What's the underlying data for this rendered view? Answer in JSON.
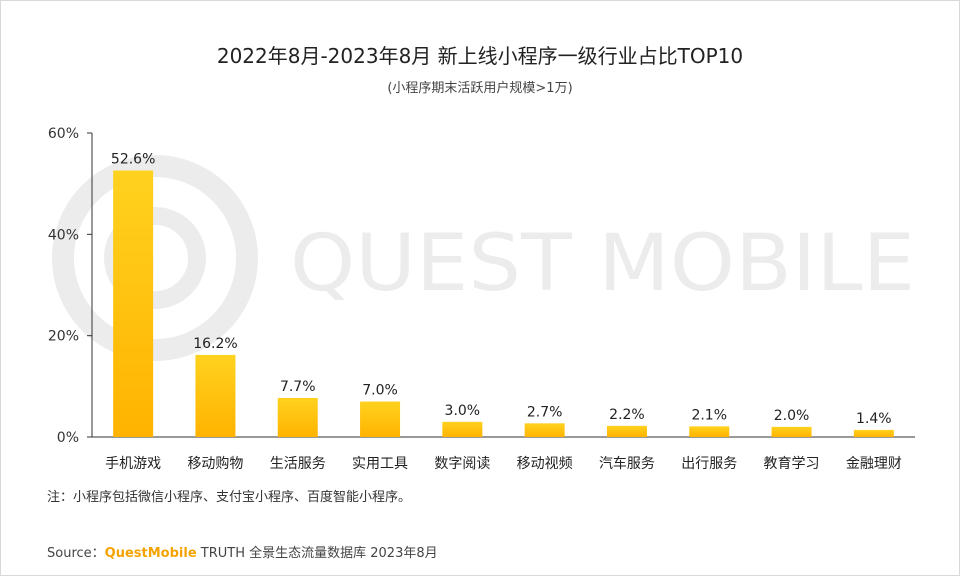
{
  "title": "2022年8月-2023年8月 新上线小程序一级行业占比TOP10",
  "subtitle": "(小程序期末活跃用户规模>1万)",
  "watermark": "QUEST MOBILE",
  "note": "注：小程序包括微信小程序、支付宝小程序、百度智能小程序。",
  "source": {
    "label": "Source：",
    "brand": "QuestMobile",
    "text": "TRUTH 全景生态流量数据库 2023年8月"
  },
  "colors": {
    "bar_top": "#ffd21f",
    "bar_bottom": "#ffb300",
    "brand": "#f5a300",
    "axis": "#333333"
  },
  "chart_data": {
    "type": "bar",
    "categories": [
      "手机游戏",
      "移动购物",
      "生活服务",
      "实用工具",
      "数字阅读",
      "移动视频",
      "汽车服务",
      "出行服务",
      "教育学习",
      "金融理财"
    ],
    "values": [
      52.6,
      16.2,
      7.7,
      7.0,
      3.0,
      2.7,
      2.2,
      2.1,
      2.0,
      1.4
    ],
    "value_labels": [
      "52.6%",
      "16.2%",
      "7.7%",
      "7.0%",
      "3.0%",
      "2.7%",
      "2.2%",
      "2.1%",
      "2.0%",
      "1.4%"
    ],
    "ylim": [
      0,
      60
    ],
    "yticks": [
      0,
      20,
      40,
      60
    ],
    "ytick_labels": [
      "0%",
      "20%",
      "40%",
      "60%"
    ],
    "grid": false,
    "legend": false
  }
}
